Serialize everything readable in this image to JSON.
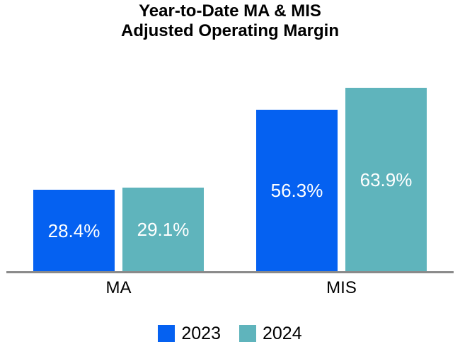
{
  "chart_data": {
    "type": "bar",
    "title": "Year-to-Date MA & MIS Adjusted Operating Margin",
    "title_lines": [
      "Year-to-Date MA & MIS",
      "Adjusted Operating Margin"
    ],
    "categories": [
      "MA",
      "MIS"
    ],
    "series": [
      {
        "name": "2023",
        "color": "#0561F1",
        "values": [
          28.4,
          56.3
        ],
        "labels": [
          "28.4%",
          "56.3%"
        ]
      },
      {
        "name": "2024",
        "color": "#5FB4BC",
        "values": [
          29.1,
          63.9
        ],
        "labels": [
          "29.1%",
          "63.9%"
        ]
      }
    ],
    "ylim": [
      0,
      70
    ],
    "xlabel": "",
    "ylabel": "",
    "grid": false,
    "y_axis_visible": false,
    "legend_position": "bottom",
    "axis_line_color": "#8A8A8A",
    "bar_label_color": "#FFFFFF",
    "text_color": "#000000",
    "background_color": "#FFFFFF"
  }
}
